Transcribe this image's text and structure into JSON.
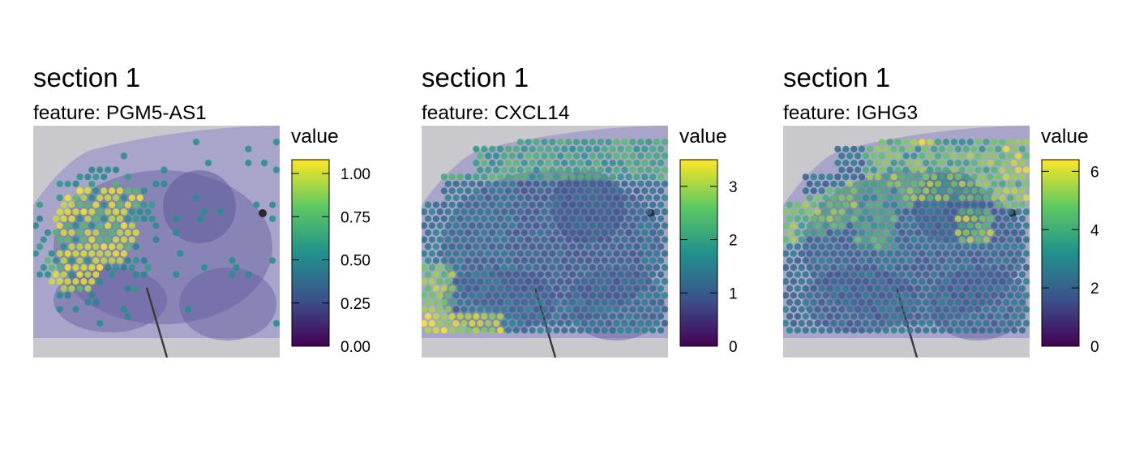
{
  "chart_data": [
    {
      "type": "scatter",
      "title": "section 1",
      "subtitle_prefix": "feature:",
      "feature": "PGM5-AS1",
      "legend_title": "value",
      "color_scale": "viridis",
      "legend_ticks": [
        "0.00",
        "0.25",
        "0.50",
        "0.75",
        "1.00"
      ],
      "legend_tick_values": [
        0,
        0.25,
        0.5,
        0.75,
        1.0
      ],
      "vmin": 0,
      "vmax": 1.08,
      "pattern": "pgm5"
    },
    {
      "type": "scatter",
      "title": "section 1",
      "subtitle_prefix": "feature:",
      "feature": "CXCL14",
      "legend_title": "value",
      "color_scale": "viridis",
      "legend_ticks": [
        "0",
        "1",
        "2",
        "3"
      ],
      "legend_tick_values": [
        0,
        1,
        2,
        3
      ],
      "vmin": 0,
      "vmax": 3.5,
      "pattern": "cxcl14"
    },
    {
      "type": "scatter",
      "title": "section 1",
      "subtitle_prefix": "feature:",
      "feature": "IGHG3",
      "legend_title": "value",
      "color_scale": "viridis",
      "legend_ticks": [
        "0",
        "2",
        "4",
        "6"
      ],
      "legend_tick_values": [
        0,
        2,
        4,
        6
      ],
      "vmin": 0,
      "vmax": 6.4,
      "pattern": "ighg3"
    }
  ],
  "colors": {
    "viridis_stops": [
      "#440154",
      "#3b528b",
      "#21918c",
      "#5ec962",
      "#fde725"
    ],
    "tissue_background": "#c9c8cc",
    "tissue_stain": "#6f6aa6"
  }
}
